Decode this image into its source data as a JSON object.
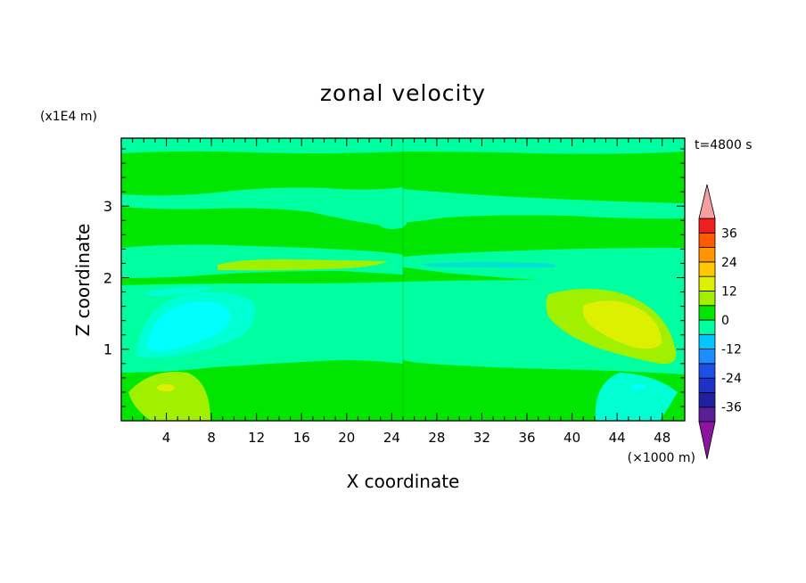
{
  "chart_data": {
    "type": "heatmap",
    "title": "zonal velocity",
    "xlabel": "X coordinate",
    "ylabel": "Z coordinate",
    "x_unit": "(×1000 m)",
    "y_unit": "(x1E4 m)",
    "time_label": "t=4800 s",
    "xlim": [
      0,
      50
    ],
    "ylim": [
      0,
      3.95
    ],
    "x_ticks": [
      4,
      8,
      12,
      16,
      20,
      24,
      28,
      32,
      36,
      40,
      44,
      48
    ],
    "y_ticks": [
      1,
      2,
      3
    ],
    "colorbar": {
      "levels": [
        -42,
        -36,
        -30,
        -24,
        -18,
        -12,
        -6,
        0,
        6,
        12,
        18,
        24,
        30,
        36,
        42
      ],
      "labels": [
        "36",
        "24",
        "12",
        "0",
        "-12",
        "-24",
        "-36"
      ],
      "label_values": [
        36,
        24,
        12,
        0,
        -12,
        -24,
        -36
      ],
      "colors": [
        "#5a1e96",
        "#2020a0",
        "#1e32c8",
        "#1e50e6",
        "#1e8cff",
        "#00c8ff",
        "#00ffa0",
        "#00e600",
        "#a0f000",
        "#dcf000",
        "#ffc800",
        "#ff9600",
        "#ff5a00",
        "#f01e1e"
      ],
      "under_color": "#8c14a0",
      "over_color": "#f5a0a0"
    },
    "background_level_color": "#00e600",
    "fields": [
      {
        "region": "top band",
        "x": [
          0,
          50
        ],
        "z": [
          3.75,
          3.95
        ],
        "level": "-6..0"
      },
      {
        "region": "upper band",
        "x": [
          0,
          50
        ],
        "z": [
          2.95,
          3.3
        ],
        "level": "-6..0"
      },
      {
        "region": "mid band left",
        "x": [
          0,
          25
        ],
        "z": [
          2.05,
          2.5
        ],
        "level": "-6..0"
      },
      {
        "region": "mid band right",
        "x": [
          25,
          50
        ],
        "z": [
          2.0,
          2.55
        ],
        "level": "-6..0"
      },
      {
        "region": "core left",
        "x": [
          0,
          24
        ],
        "z": [
          0.95,
          1.95
        ],
        "level": "-6..0"
      },
      {
        "region": "core right",
        "x": [
          25,
          50
        ],
        "z": [
          0.8,
          1.95
        ],
        "level": "-6..0"
      },
      {
        "region": "jet left",
        "x": [
          8.5,
          23
        ],
        "z": [
          2.1,
          2.3
        ],
        "level": "0..6"
      },
      {
        "region": "jet right",
        "x": [
          27,
          40
        ],
        "z": [
          2.15,
          2.3
        ],
        "level": "-6..0"
      },
      {
        "region": "cyan blob left",
        "x": [
          1.5,
          12
        ],
        "z": [
          1.05,
          1.9
        ],
        "level": "-12..-6"
      },
      {
        "region": "yellow blob right",
        "x": [
          38,
          49
        ],
        "z": [
          0.85,
          1.95
        ],
        "level": "6..12"
      },
      {
        "region": "bottom yellow left",
        "x": [
          0.5,
          8
        ],
        "z": [
          0,
          0.7
        ],
        "level": "6..12"
      },
      {
        "region": "bottom cyan right",
        "x": [
          42,
          49
        ],
        "z": [
          0,
          0.7
        ],
        "level": "-12..-6"
      }
    ]
  }
}
